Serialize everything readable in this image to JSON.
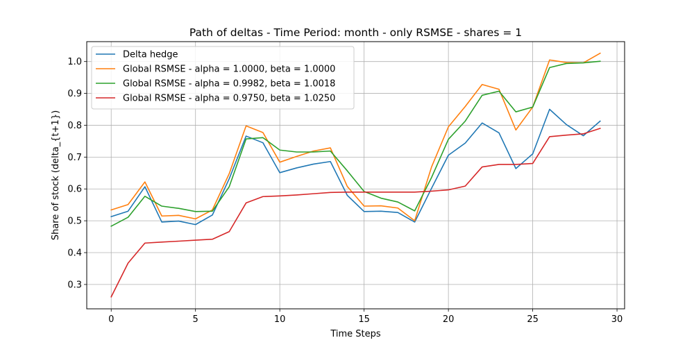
{
  "chart_data": {
    "type": "line",
    "title": "Path of deltas - Time Period: month - only RSMSE - shares = 1",
    "xlabel": "Time Steps",
    "ylabel": "Share of stock (delta_{t+1})",
    "xlim": [
      -1.45,
      30.45
    ],
    "ylim": [
      0.2235,
      1.0625
    ],
    "xticks": [
      0,
      5,
      10,
      15,
      20,
      25,
      30
    ],
    "yticks": [
      0.3,
      0.4,
      0.5,
      0.6,
      0.7,
      0.8,
      0.9,
      1.0
    ],
    "ytick_labels": [
      "0.3",
      "0.4",
      "0.5",
      "0.6",
      "0.7",
      "0.8",
      "0.9",
      "1.0"
    ],
    "grid": true,
    "legend_position": "top-left",
    "x": [
      0,
      1,
      2,
      3,
      4,
      5,
      6,
      7,
      8,
      9,
      10,
      11,
      12,
      13,
      14,
      15,
      16,
      17,
      18,
      19,
      20,
      21,
      22,
      23,
      24,
      25,
      26,
      27,
      28,
      29
    ],
    "series": [
      {
        "name": "Delta hedge",
        "color": "#1f77b4",
        "values": [
          0.513,
          0.53,
          0.607,
          0.496,
          0.499,
          0.488,
          0.518,
          0.632,
          0.766,
          0.745,
          0.651,
          0.666,
          0.678,
          0.686,
          0.58,
          0.529,
          0.53,
          0.526,
          0.496,
          0.602,
          0.706,
          0.744,
          0.807,
          0.776,
          0.664,
          0.71,
          0.85,
          0.802,
          0.767,
          0.813
        ]
      },
      {
        "name": "Global RSMSE - alpha = 1.0000, beta = 1.0000",
        "color": "#ff7f0e",
        "values": [
          0.534,
          0.551,
          0.622,
          0.515,
          0.517,
          0.506,
          0.534,
          0.648,
          0.798,
          0.777,
          0.684,
          0.702,
          0.719,
          0.729,
          0.608,
          0.546,
          0.547,
          0.54,
          0.5,
          0.669,
          0.795,
          0.859,
          0.928,
          0.913,
          0.785,
          0.857,
          1.005,
          0.997,
          0.996,
          1.026
        ]
      },
      {
        "name": "Global RSMSE - alpha = 0.9982, beta = 1.0018",
        "color": "#2ca02c",
        "values": [
          0.483,
          0.511,
          0.577,
          0.546,
          0.539,
          0.529,
          0.53,
          0.607,
          0.757,
          0.761,
          0.722,
          0.716,
          0.716,
          0.719,
          0.657,
          0.592,
          0.571,
          0.559,
          0.531,
          0.636,
          0.756,
          0.813,
          0.894,
          0.907,
          0.842,
          0.857,
          0.981,
          0.994,
          0.996,
          1.001
        ]
      },
      {
        "name": "Global RSMSE - alpha = 0.9750, beta = 1.0250",
        "color": "#d62728",
        "values": [
          0.261,
          0.367,
          0.43,
          0.433,
          0.436,
          0.439,
          0.442,
          0.466,
          0.556,
          0.576,
          0.578,
          0.581,
          0.585,
          0.589,
          0.59,
          0.59,
          0.59,
          0.59,
          0.59,
          0.593,
          0.597,
          0.609,
          0.669,
          0.677,
          0.677,
          0.68,
          0.764,
          0.769,
          0.773,
          0.79
        ]
      }
    ]
  }
}
